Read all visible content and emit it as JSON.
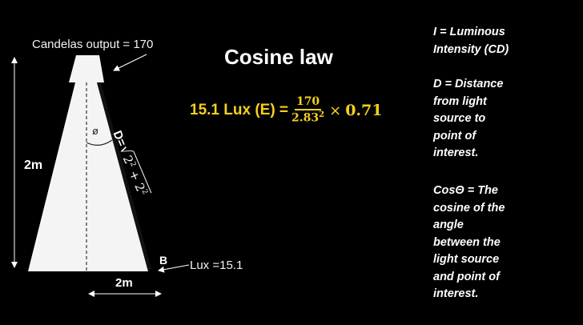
{
  "title": "Cosine law",
  "diagram": {
    "candelas_label": "Candelas output = 170",
    "height_label": "2m",
    "width_label": "2m",
    "angle_symbol": "ø",
    "distance_prefix": "D=",
    "distance_radicand_a": "2",
    "distance_radicand_b": "2",
    "distance_exponent": "2",
    "distance_plus": " + ",
    "point_label": "B",
    "lux_label": "Lux =15.1"
  },
  "equation": {
    "lhs": "15.1 Lux (E) =",
    "numerator": "170",
    "denominator": "2.83",
    "denominator_exponent": "2",
    "times": "×",
    "factor": "0.71"
  },
  "legend": [
    {
      "lines": [
        "I = Luminous",
        "Intensity (CD)"
      ]
    },
    {
      "lines": [
        "D = Distance",
        "from light",
        "source to",
        "point of",
        "interest."
      ]
    },
    {
      "lines": [
        "CosΘ = The",
        "cosine of the",
        "angle",
        "between the",
        "light source",
        "and point of",
        "interest."
      ]
    }
  ],
  "colors": {
    "background": "#000000",
    "text": "#ffffff",
    "equation": "#f5d020",
    "light_cone": "#f4f4f4"
  }
}
